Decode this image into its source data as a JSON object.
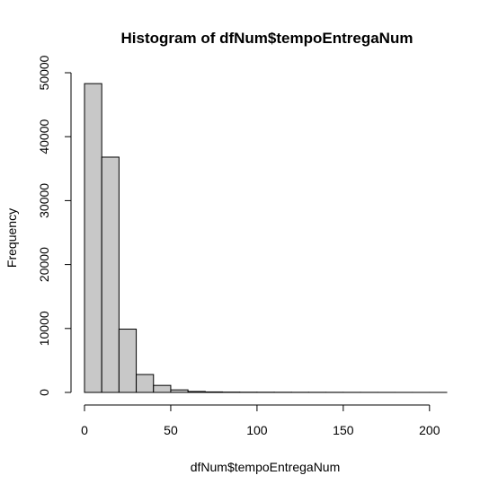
{
  "chart_data": {
    "type": "bar",
    "title": "Histogram of dfNum$tempoEntregaNum",
    "xlabel": "dfNum$tempoEntregaNum",
    "ylabel": "Frequency",
    "bin_width": 10,
    "bin_edges": [
      0,
      10,
      20,
      30,
      40,
      50,
      60,
      70,
      80,
      90,
      100,
      110,
      120,
      130,
      140,
      150,
      160,
      170,
      180,
      190,
      200,
      210
    ],
    "values": [
      48300,
      36800,
      9900,
      2800,
      1100,
      400,
      150,
      80,
      50,
      35,
      30,
      25,
      20,
      18,
      15,
      12,
      10,
      8,
      6,
      5,
      4
    ],
    "xlim": [
      0,
      210
    ],
    "ylim": [
      0,
      50000
    ],
    "x_ticks": [
      0,
      50,
      100,
      150,
      200
    ],
    "y_ticks": [
      0,
      10000,
      20000,
      30000,
      40000,
      50000
    ],
    "bar_color": "#c8c8c8",
    "edge_color": "#000000",
    "grid": false,
    "legend": "none"
  }
}
